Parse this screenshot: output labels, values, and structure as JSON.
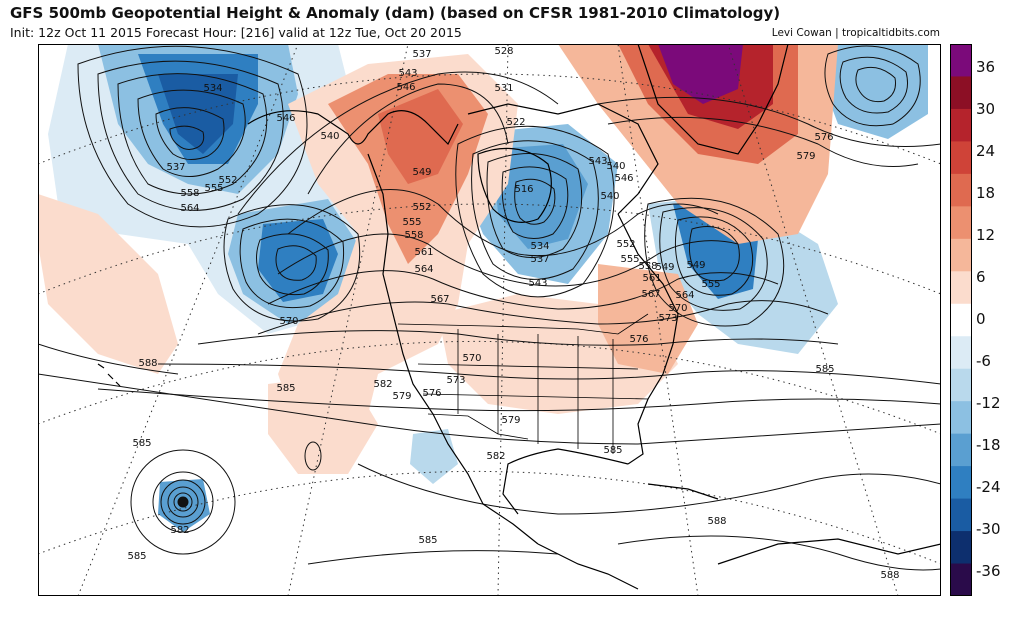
{
  "header": {
    "title": "GFS 500mb Geopotential Height & Anomaly (dam) (based on CFSR 1981-2010 Climatology)",
    "subtitle": "Init: 12z Oct 11 2015   Forecast Hour: [216]   valid at 12z Tue, Oct 20 2015",
    "credit": "Levi Cowan | tropicaltidbits.com"
  },
  "colorbar": {
    "labels": [
      "36",
      "30",
      "24",
      "18",
      "12",
      "6",
      "0",
      "-6",
      "-12",
      "-18",
      "-24",
      "-30",
      "-36"
    ],
    "colors": [
      "#2a0b4a",
      "#0d2f6e",
      "#1a5ca3",
      "#2f7fc1",
      "#5a9fd1",
      "#8cc0e2",
      "#b9d9ec",
      "#dcebf5",
      "#ffffff",
      "#fbdccd",
      "#f5b79a",
      "#ec9070",
      "#df6a50",
      "#cf4338",
      "#b5232c",
      "#8c0f25",
      "#7b0a7a"
    ]
  },
  "contour_labels": [
    {
      "text": "534"
    },
    {
      "text": "537"
    },
    {
      "text": "558"
    },
    {
      "text": "555"
    },
    {
      "text": "552"
    },
    {
      "text": "564"
    },
    {
      "text": "546"
    },
    {
      "text": "540"
    },
    {
      "text": "537"
    },
    {
      "text": "543"
    },
    {
      "text": "546"
    },
    {
      "text": "528"
    },
    {
      "text": "531"
    },
    {
      "text": "522"
    },
    {
      "text": "516"
    },
    {
      "text": "549"
    },
    {
      "text": "552"
    },
    {
      "text": "555"
    },
    {
      "text": "558"
    },
    {
      "text": "561"
    },
    {
      "text": "564"
    },
    {
      "text": "567"
    },
    {
      "text": "534"
    },
    {
      "text": "537"
    },
    {
      "text": "543"
    },
    {
      "text": "540"
    },
    {
      "text": "540"
    },
    {
      "text": "543"
    },
    {
      "text": "546"
    },
    {
      "text": "549"
    },
    {
      "text": "552"
    },
    {
      "text": "555"
    },
    {
      "text": "558"
    },
    {
      "text": "561"
    },
    {
      "text": "567"
    },
    {
      "text": "573"
    },
    {
      "text": "564"
    },
    {
      "text": "570"
    },
    {
      "text": "549"
    },
    {
      "text": "555"
    },
    {
      "text": "576"
    },
    {
      "text": "579"
    },
    {
      "text": "576"
    },
    {
      "text": "570"
    },
    {
      "text": "588"
    },
    {
      "text": "585"
    },
    {
      "text": "582"
    },
    {
      "text": "579"
    },
    {
      "text": "576"
    },
    {
      "text": "573"
    },
    {
      "text": "570"
    },
    {
      "text": "579"
    },
    {
      "text": "582"
    },
    {
      "text": "585"
    },
    {
      "text": "585"
    },
    {
      "text": "585"
    },
    {
      "text": "588"
    },
    {
      "text": "588"
    },
    {
      "text": "582"
    },
    {
      "text": "585"
    },
    {
      "text": "585"
    }
  ]
}
